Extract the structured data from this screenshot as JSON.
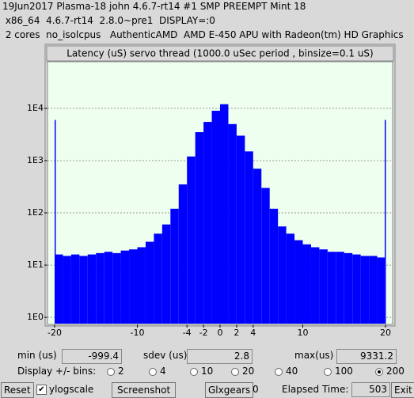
{
  "header": {
    "lines": [
      "19Jun2017 Plasma-18 john 4.6.7-rt14 #1 SMP PREEMPT Mint 18",
      " x86_64  4.6.7-rt14  2.8.0~pre1  DISPLAY=:0",
      " 2 cores  no_isolcpus   AuthenticAMD  AMD E-450 APU with Radeon(tm) HD Graphics"
    ]
  },
  "chart_data": {
    "type": "histogram",
    "title": "Latency (uS) servo thread (1000.0 uSec period , binsize=0.1 uS)",
    "bins": [
      -20,
      -19.9,
      -19,
      -18,
      -17,
      -16,
      -15,
      -14,
      -13,
      -12,
      -11,
      -10,
      -9,
      -8,
      -7,
      -6,
      -5,
      -4,
      -3,
      -2,
      -1,
      0,
      1,
      2,
      3,
      4,
      5,
      6,
      7,
      8,
      9,
      10,
      11,
      12,
      13,
      14,
      15,
      16,
      17,
      18,
      19,
      19.9,
      20
    ],
    "values": [
      6000,
      16,
      15,
      16,
      15,
      16,
      17,
      18,
      17,
      19,
      20,
      22,
      28,
      40,
      60,
      120,
      350,
      1200,
      3500,
      5500,
      9000,
      12000,
      5000,
      3000,
      1500,
      700,
      300,
      120,
      55,
      40,
      30,
      25,
      22,
      20,
      18,
      18,
      17,
      16,
      15,
      15,
      14,
      6000
    ],
    "color": "#0000ff",
    "xlim": [
      -20.86,
      20.86
    ],
    "xticks": [
      -20,
      -10,
      -4,
      -2,
      0,
      2,
      4,
      10,
      20
    ],
    "ylim": [
      0.76,
      78000
    ],
    "log_y": true,
    "grid": true,
    "yticks": [
      {
        "value": 1,
        "label": "1E0"
      },
      {
        "value": 10,
        "label": "1E1"
      },
      {
        "value": 100,
        "label": "1E2"
      },
      {
        "value": 1000,
        "label": "1E3"
      },
      {
        "value": 10000,
        "label": "1E4"
      }
    ]
  },
  "stats": [
    {
      "label": "min (us)",
      "value": "-999.4"
    },
    {
      "label": "sdev (us):",
      "value": "2.8"
    },
    {
      "label": "max(us)",
      "value": "9331.2"
    }
  ],
  "bins_control": {
    "label": "Display +/- bins:",
    "options": [
      {
        "value": 2,
        "selected": false
      },
      {
        "value": 4,
        "selected": false
      },
      {
        "value": 10,
        "selected": false
      },
      {
        "value": 20,
        "selected": false
      },
      {
        "value": 40,
        "selected": false
      },
      {
        "value": 100,
        "selected": false
      },
      {
        "value": 200,
        "selected": true
      }
    ]
  },
  "toolbar": {
    "reset": "Reset",
    "ylogscale": {
      "label": "ylogscale",
      "checked": true
    },
    "screenshot": "Screenshot",
    "glxgears": {
      "label": "Glxgears",
      "value": 0
    },
    "elapsed": {
      "label": "Elapsed Time:",
      "value": 503
    },
    "exit": "Exit"
  }
}
